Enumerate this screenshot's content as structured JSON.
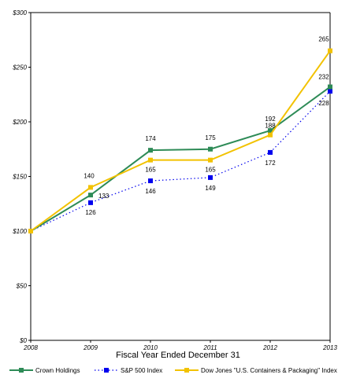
{
  "chart_data": {
    "type": "line",
    "title": "",
    "xlabel": "Fiscal Year Ended December 31",
    "ylabel": "",
    "categories": [
      "2008",
      "2009",
      "2010",
      "2011",
      "2012",
      "2013"
    ],
    "ylim": [
      0,
      300
    ],
    "yticks": [
      "$0",
      "$50",
      "$100",
      "$150",
      "$200",
      "$250",
      "$300"
    ],
    "ytick_values": [
      0,
      50,
      100,
      150,
      200,
      250,
      300
    ],
    "grid": false,
    "legend_position": "bottom",
    "series": [
      {
        "name": "Crown Holdings",
        "values": [
          100,
          133,
          174,
          175,
          192,
          232
        ],
        "labels": [
          "",
          "133",
          "174",
          "175",
          "192",
          "232"
        ],
        "color": "#2e8b57",
        "style": "solid",
        "marker": "square"
      },
      {
        "name": "S&P 500 Index",
        "values": [
          100,
          126,
          146,
          149,
          172,
          228
        ],
        "labels": [
          "",
          "126",
          "146",
          "149",
          "172",
          "228"
        ],
        "color": "#0000ee",
        "style": "dotted",
        "marker": "square"
      },
      {
        "name": "Dow Jones \"U.S. Containers & Packaging\" Index",
        "values": [
          100,
          140,
          165,
          165,
          188,
          265
        ],
        "labels": [
          "",
          "140",
          "165",
          "165",
          "188",
          "265"
        ],
        "color": "#f2c200",
        "style": "solid",
        "marker": "square"
      }
    ]
  }
}
